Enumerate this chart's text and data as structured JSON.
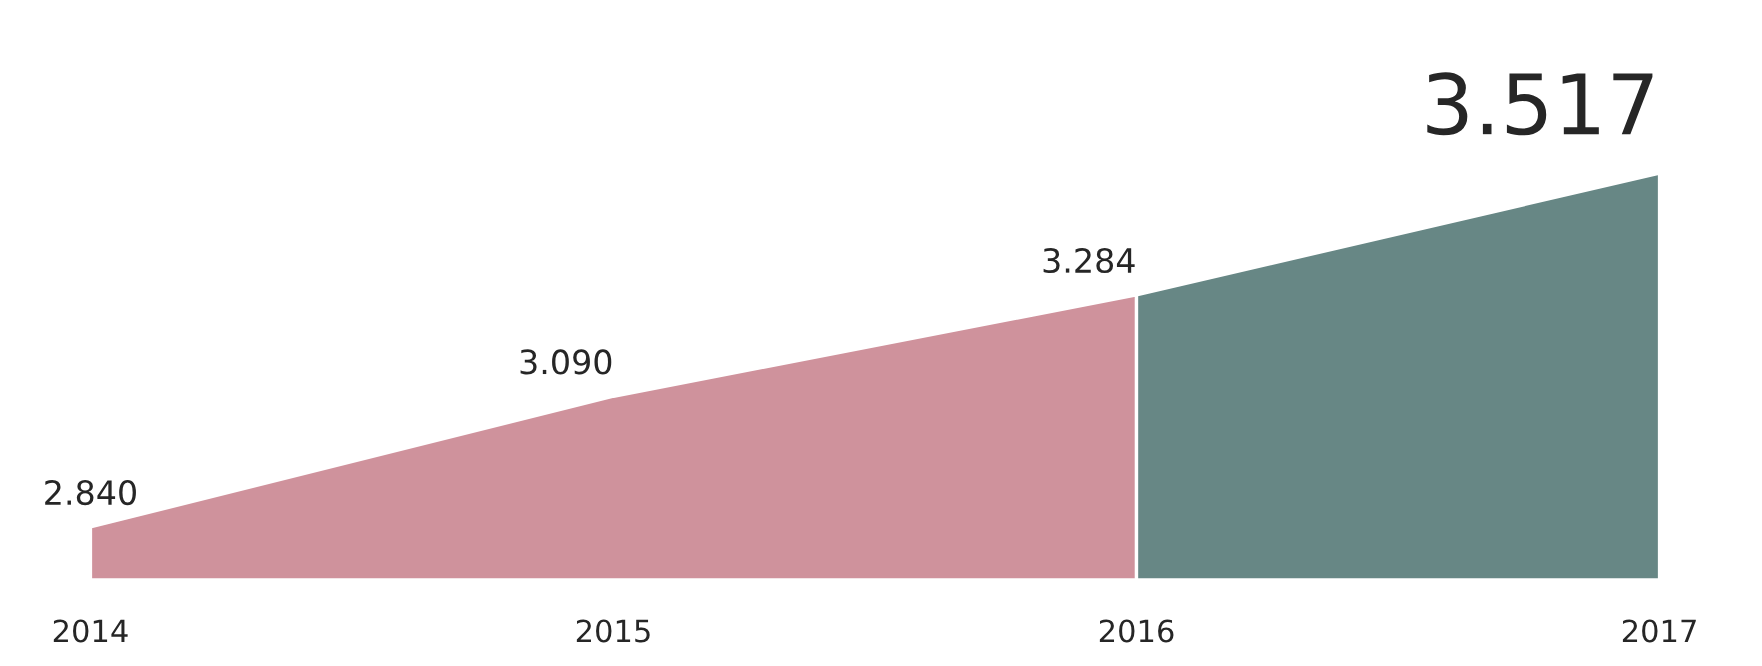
{
  "chart_data": {
    "type": "area",
    "categories": [
      "2014",
      "2015",
      "2016",
      "2017"
    ],
    "series": [
      {
        "color": "#cf929c",
        "values": [
          2.84,
          3.09,
          3.284,
          null
        ],
        "value_labels": [
          "2.840",
          "3.090",
          "3.284",
          null
        ]
      },
      {
        "color": "#678785",
        "values": [
          null,
          null,
          3.284,
          3.517
        ],
        "value_labels": [
          null,
          null,
          null,
          "3.517"
        ]
      }
    ],
    "grid": false,
    "legend": false
  }
}
